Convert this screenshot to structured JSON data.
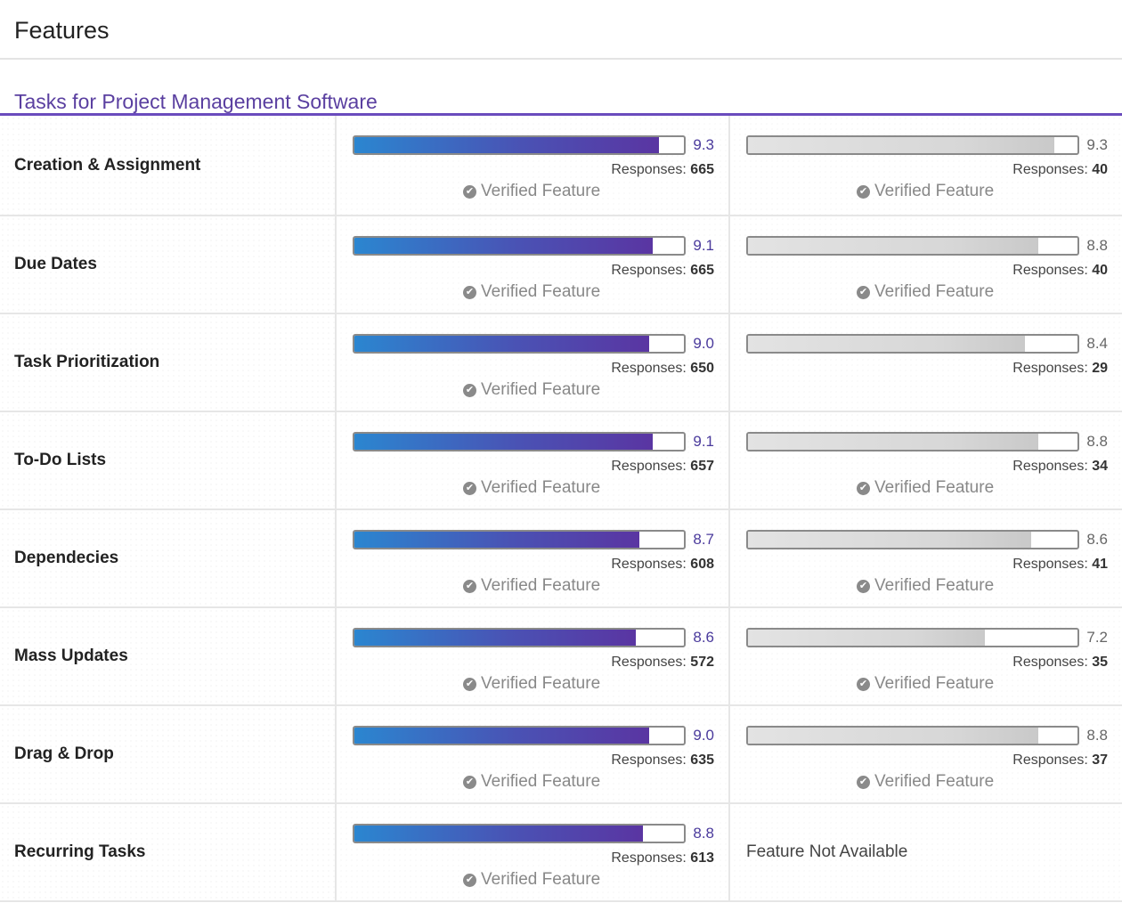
{
  "header": {
    "title": "Features"
  },
  "section": {
    "title": "Tasks for Project Management Software"
  },
  "labels": {
    "responses_prefix": "Responses: ",
    "verified": "Verified Feature",
    "not_available": "Feature Not Available"
  },
  "colors": {
    "accent": "#5a3fa0",
    "bar_start": "#2b86d0",
    "bar_end": "#5a35a2",
    "gray_bar": "#d7d7d7"
  },
  "rows": [
    {
      "name": "Creation & Assignment",
      "a": {
        "score": "9.3",
        "responses": "665",
        "verified": true
      },
      "b": {
        "score": "9.3",
        "responses": "40",
        "verified": true,
        "available": true
      }
    },
    {
      "name": "Due Dates",
      "a": {
        "score": "9.1",
        "responses": "665",
        "verified": true
      },
      "b": {
        "score": "8.8",
        "responses": "40",
        "verified": true,
        "available": true
      }
    },
    {
      "name": "Task Prioritization",
      "a": {
        "score": "9.0",
        "responses": "650",
        "verified": true
      },
      "b": {
        "score": "8.4",
        "responses": "29",
        "verified": false,
        "available": true
      }
    },
    {
      "name": "To-Do Lists",
      "a": {
        "score": "9.1",
        "responses": "657",
        "verified": true
      },
      "b": {
        "score": "8.8",
        "responses": "34",
        "verified": true,
        "available": true
      }
    },
    {
      "name": "Dependecies",
      "a": {
        "score": "8.7",
        "responses": "608",
        "verified": true
      },
      "b": {
        "score": "8.6",
        "responses": "41",
        "verified": true,
        "available": true
      }
    },
    {
      "name": "Mass Updates",
      "a": {
        "score": "8.6",
        "responses": "572",
        "verified": true
      },
      "b": {
        "score": "7.2",
        "responses": "35",
        "verified": true,
        "available": true
      }
    },
    {
      "name": "Drag & Drop",
      "a": {
        "score": "9.0",
        "responses": "635",
        "verified": true
      },
      "b": {
        "score": "8.8",
        "responses": "37",
        "verified": true,
        "available": true
      }
    },
    {
      "name": "Recurring Tasks",
      "a": {
        "score": "8.8",
        "responses": "613",
        "verified": true
      },
      "b": {
        "available": false
      }
    }
  ]
}
